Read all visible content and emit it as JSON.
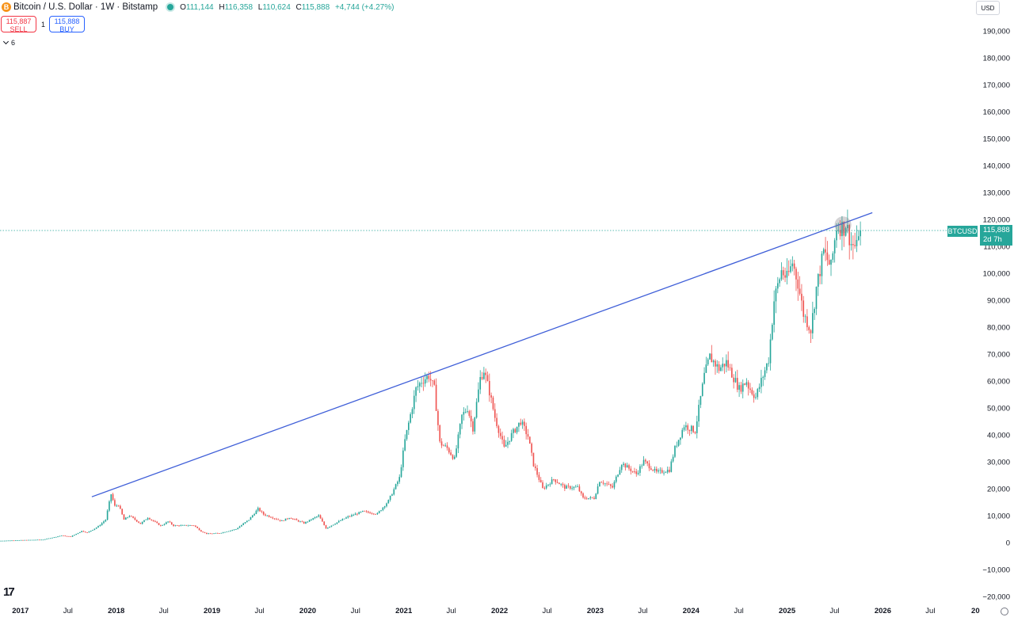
{
  "header": {
    "icon_letter": "B",
    "title": "Bitcoin / U.S. Dollar · 1W · Bitstamp",
    "ohlc": {
      "o_label": "O",
      "o": "111,144",
      "h_label": "H",
      "h": "116,358",
      "l_label": "L",
      "l": "110,624",
      "c_label": "C",
      "c": "115,888",
      "chg": "+4,744 (+4.27%)"
    }
  },
  "trade": {
    "sell_price": "115,887",
    "sell_label": "SELL",
    "spread": "1",
    "buy_price": "115,888",
    "buy_label": "BUY"
  },
  "indicators": {
    "collapse_count": "6"
  },
  "currency": "USD",
  "logo": "17",
  "price_label": {
    "symbol": "BTCUSD",
    "price": "115,888",
    "countdown": "2d 7h"
  },
  "colors": {
    "up": "#26a69a",
    "down": "#ef5350",
    "trendline": "#3f5fd8",
    "axis_text": "#131722"
  },
  "chart_data": {
    "type": "candlestick",
    "title": "",
    "xlabel": "",
    "ylabel": "",
    "ylim": [
      -20000,
      195000
    ],
    "x_range": [
      "2016-10-15",
      "2026-12-22"
    ],
    "y_ticks": [
      190000,
      180000,
      170000,
      160000,
      150000,
      140000,
      130000,
      120000,
      110000,
      100000,
      90000,
      80000,
      70000,
      60000,
      50000,
      40000,
      30000,
      20000,
      10000,
      0,
      -10000,
      -20000
    ],
    "y_tick_labels": [
      "190,000",
      "180,000",
      "170,000",
      "160,000",
      "150,000",
      "140,000",
      "130,000",
      "120,000",
      "110,000",
      "100,000",
      "90,000",
      "80,000",
      "70,000",
      "60,000",
      "50,000",
      "40,000",
      "30,000",
      "20,000",
      "10,000",
      "0",
      "−10,000",
      "−20,000"
    ],
    "x_ticks": [
      {
        "label": "2017",
        "date": "2017-01-01",
        "bold": true
      },
      {
        "label": "Jul",
        "date": "2017-07-01",
        "bold": false
      },
      {
        "label": "2018",
        "date": "2018-01-01",
        "bold": true
      },
      {
        "label": "Jul",
        "date": "2018-07-01",
        "bold": false
      },
      {
        "label": "2019",
        "date": "2019-01-01",
        "bold": true
      },
      {
        "label": "Jul",
        "date": "2019-07-01",
        "bold": false
      },
      {
        "label": "2020",
        "date": "2020-01-01",
        "bold": true
      },
      {
        "label": "Jul",
        "date": "2020-07-01",
        "bold": false
      },
      {
        "label": "2021",
        "date": "2021-01-01",
        "bold": true
      },
      {
        "label": "Jul",
        "date": "2021-07-01",
        "bold": false
      },
      {
        "label": "2022",
        "date": "2022-01-01",
        "bold": true
      },
      {
        "label": "Jul",
        "date": "2022-07-01",
        "bold": false
      },
      {
        "label": "2023",
        "date": "2023-01-01",
        "bold": true
      },
      {
        "label": "Jul",
        "date": "2023-07-01",
        "bold": false
      },
      {
        "label": "2024",
        "date": "2024-01-01",
        "bold": true
      },
      {
        "label": "Jul",
        "date": "2024-07-01",
        "bold": false
      },
      {
        "label": "2025",
        "date": "2025-01-01",
        "bold": true
      },
      {
        "label": "Jul",
        "date": "2025-07-01",
        "bold": false
      },
      {
        "label": "2026",
        "date": "2026-01-01",
        "bold": true
      },
      {
        "label": "Jul",
        "date": "2026-07-01",
        "bold": false
      },
      {
        "label": "20",
        "date": "2026-12-20",
        "bold": true
      }
    ],
    "last_price": 115888,
    "trendline": {
      "start": {
        "date": "2017-09-30",
        "price": 17000
      },
      "end": {
        "date": "2025-11-22",
        "price": 122500
      }
    },
    "highlight_circle": {
      "center_date": "2025-08-02",
      "center_price": 118000,
      "radius_days": 32
    },
    "anchors": [
      [
        "2016-10-15",
        650
      ],
      [
        "2017-01-07",
        900
      ],
      [
        "2017-04-01",
        1100
      ],
      [
        "2017-06-10",
        2600
      ],
      [
        "2017-07-15",
        2200
      ],
      [
        "2017-08-26",
        4300
      ],
      [
        "2017-09-16",
        3700
      ],
      [
        "2017-10-28",
        6000
      ],
      [
        "2017-11-25",
        8500
      ],
      [
        "2017-12-16",
        18000
      ],
      [
        "2017-12-30",
        13500
      ],
      [
        "2018-01-13",
        14000
      ],
      [
        "2018-02-03",
        8500
      ],
      [
        "2018-02-24",
        10000
      ],
      [
        "2018-04-07",
        7000
      ],
      [
        "2018-05-05",
        9300
      ],
      [
        "2018-06-23",
        6200
      ],
      [
        "2018-07-21",
        7800
      ],
      [
        "2018-08-11",
        6300
      ],
      [
        "2018-10-27",
        6400
      ],
      [
        "2018-11-24",
        4200
      ],
      [
        "2018-12-15",
        3300
      ],
      [
        "2019-02-02",
        3500
      ],
      [
        "2019-04-06",
        5000
      ],
      [
        "2019-05-25",
        8500
      ],
      [
        "2019-06-29",
        12500
      ],
      [
        "2019-07-20",
        10500
      ],
      [
        "2019-09-28",
        8000
      ],
      [
        "2019-10-26",
        9300
      ],
      [
        "2019-12-21",
        7200
      ],
      [
        "2020-02-15",
        10000
      ],
      [
        "2020-03-14",
        5300
      ],
      [
        "2020-04-25",
        7500
      ],
      [
        "2020-06-06",
        9600
      ],
      [
        "2020-08-01",
        11500
      ],
      [
        "2020-09-26",
        10700
      ],
      [
        "2020-11-07",
        15500
      ],
      [
        "2020-12-19",
        24000
      ],
      [
        "2021-01-09",
        38000
      ],
      [
        "2021-02-20",
        57000
      ],
      [
        "2021-03-13",
        60000
      ],
      [
        "2021-04-10",
        62000
      ],
      [
        "2021-05-01",
        57000
      ],
      [
        "2021-05-22",
        37000
      ],
      [
        "2021-06-19",
        35000
      ],
      [
        "2021-07-17",
        31000
      ],
      [
        "2021-08-14",
        47000
      ],
      [
        "2021-09-04",
        50000
      ],
      [
        "2021-09-25",
        42500
      ],
      [
        "2021-10-23",
        61000
      ],
      [
        "2021-11-06",
        64000
      ],
      [
        "2021-11-27",
        56000
      ],
      [
        "2021-12-18",
        46500
      ],
      [
        "2022-01-22",
        35000
      ],
      [
        "2022-02-19",
        40000
      ],
      [
        "2022-03-26",
        45000
      ],
      [
        "2022-04-23",
        39500
      ],
      [
        "2022-05-14",
        29000
      ],
      [
        "2022-06-18",
        20000
      ],
      [
        "2022-07-30",
        23500
      ],
      [
        "2022-09-10",
        20500
      ],
      [
        "2022-10-29",
        20500
      ],
      [
        "2022-11-19",
        16500
      ],
      [
        "2022-12-31",
        16500
      ],
      [
        "2023-01-21",
        23000
      ],
      [
        "2023-03-11",
        20500
      ],
      [
        "2023-04-15",
        29500
      ],
      [
        "2023-06-10",
        25500
      ],
      [
        "2023-07-08",
        30200
      ],
      [
        "2023-08-26",
        26000
      ],
      [
        "2023-10-14",
        27000
      ],
      [
        "2023-11-04",
        35000
      ],
      [
        "2023-12-09",
        43500
      ],
      [
        "2024-01-20",
        41500
      ],
      [
        "2024-02-24",
        62000
      ],
      [
        "2024-03-16",
        69000
      ],
      [
        "2024-04-20",
        64500
      ],
      [
        "2024-05-18",
        67000
      ],
      [
        "2024-07-06",
        57000
      ],
      [
        "2024-08-03",
        60000
      ],
      [
        "2024-08-10",
        58000
      ],
      [
        "2024-09-07",
        54000
      ],
      [
        "2024-10-26",
        68000
      ],
      [
        "2024-11-16",
        90000
      ],
      [
        "2024-12-14",
        101000
      ],
      [
        "2025-01-04",
        98000
      ],
      [
        "2025-01-25",
        104000
      ],
      [
        "2025-02-15",
        96500
      ],
      [
        "2025-03-08",
        85000
      ],
      [
        "2025-04-05",
        79000
      ],
      [
        "2025-04-26",
        94500
      ],
      [
        "2025-05-24",
        108000
      ],
      [
        "2025-06-21",
        102000
      ],
      [
        "2025-07-12",
        117500
      ],
      [
        "2025-08-09",
        117000
      ],
      [
        "2025-08-16",
        118500
      ],
      [
        "2025-09-06",
        111000
      ],
      [
        "2025-09-27",
        109500
      ],
      [
        "2025-10-04",
        115888
      ]
    ]
  }
}
